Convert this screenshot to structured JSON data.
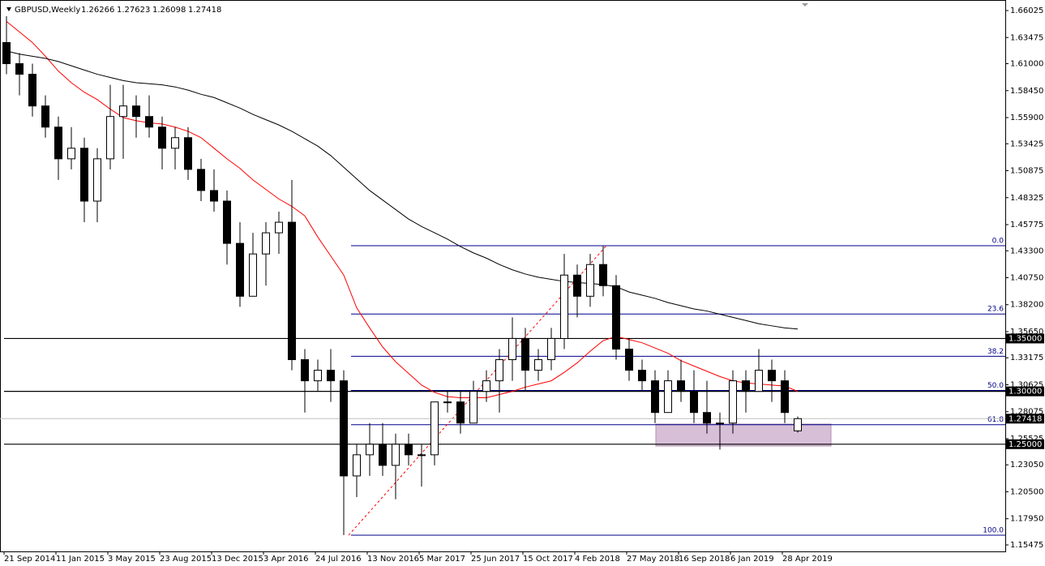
{
  "chart_data": {
    "type": "candlestick",
    "title": "GBPUSD,Weekly",
    "categories": [
      "21 Sep 2014",
      null,
      null,
      null,
      "11 Jan 2015",
      null,
      null,
      null,
      "3 May 2015",
      null,
      null,
      null,
      "23 Aug 2015",
      null,
      null,
      null,
      "13 Dec 2015",
      null,
      null,
      null,
      "3 Apr 2016",
      null,
      null,
      null,
      "24 Jul 2016",
      null,
      null,
      null,
      "13 Nov 2016",
      null,
      null,
      null,
      "5 Mar 2017",
      null,
      null,
      null,
      "25 Jun 2017",
      null,
      null,
      null,
      "15 Oct 2017",
      null,
      null,
      null,
      "4 Feb 2018",
      null,
      null,
      null,
      "27 May 2018",
      null,
      null,
      null,
      "16 Sep 2018",
      null,
      null,
      null,
      "6 Jan 2019",
      null,
      null,
      null,
      "28 Apr 2019",
      null
    ],
    "open": [
      1.63,
      1.61,
      1.6,
      1.57,
      1.55,
      1.52,
      1.53,
      1.48,
      1.52,
      1.56,
      1.57,
      1.56,
      1.55,
      1.53,
      1.54,
      1.51,
      1.49,
      1.48,
      1.44,
      1.39,
      1.43,
      1.45,
      1.46,
      1.33,
      1.31,
      1.32,
      1.31,
      1.22,
      1.24,
      1.25,
      1.23,
      1.25,
      1.24,
      1.24,
      1.29,
      1.29,
      1.27,
      1.3,
      1.31,
      1.33,
      1.35,
      1.32,
      1.33,
      1.35,
      1.41,
      1.39,
      1.42,
      1.4,
      1.34,
      1.32,
      1.31,
      1.28,
      1.31,
      1.3,
      1.28,
      1.27,
      1.27,
      1.31,
      1.3,
      1.32,
      1.31,
      1.26266
    ],
    "high": [
      1.655,
      1.62,
      1.61,
      1.58,
      1.56,
      1.55,
      1.54,
      1.53,
      1.59,
      1.59,
      1.58,
      1.58,
      1.56,
      1.55,
      1.55,
      1.52,
      1.51,
      1.49,
      1.46,
      1.45,
      1.46,
      1.47,
      1.5,
      1.34,
      1.33,
      1.34,
      1.32,
      1.25,
      1.27,
      1.27,
      1.26,
      1.26,
      1.25,
      1.29,
      1.3,
      1.3,
      1.31,
      1.32,
      1.34,
      1.37,
      1.36,
      1.34,
      1.36,
      1.43,
      1.42,
      1.43,
      1.4376,
      1.41,
      1.35,
      1.33,
      1.32,
      1.32,
      1.33,
      1.32,
      1.31,
      1.28,
      1.32,
      1.32,
      1.34,
      1.33,
      1.32,
      1.27623
    ],
    "low": [
      1.6,
      1.58,
      1.56,
      1.54,
      1.5,
      1.51,
      1.46,
      1.46,
      1.51,
      1.52,
      1.54,
      1.54,
      1.51,
      1.51,
      1.5,
      1.48,
      1.47,
      1.42,
      1.38,
      1.39,
      1.4,
      1.43,
      1.32,
      1.28,
      1.3,
      1.29,
      1.164,
      1.2,
      1.22,
      1.22,
      1.198,
      1.23,
      1.21,
      1.23,
      1.28,
      1.26,
      1.27,
      1.29,
      1.28,
      1.31,
      1.3,
      1.31,
      1.32,
      1.34,
      1.37,
      1.38,
      1.39,
      1.33,
      1.31,
      1.3,
      1.27,
      1.28,
      1.29,
      1.27,
      1.26,
      1.245,
      1.26,
      1.28,
      1.3,
      1.29,
      1.27,
      1.26098
    ],
    "close": [
      1.61,
      1.6,
      1.57,
      1.55,
      1.52,
      1.53,
      1.48,
      1.52,
      1.56,
      1.57,
      1.56,
      1.55,
      1.53,
      1.54,
      1.51,
      1.49,
      1.48,
      1.44,
      1.39,
      1.43,
      1.45,
      1.46,
      1.33,
      1.31,
      1.32,
      1.31,
      1.22,
      1.24,
      1.25,
      1.23,
      1.25,
      1.24,
      1.24,
      1.29,
      1.29,
      1.27,
      1.3,
      1.31,
      1.33,
      1.35,
      1.32,
      1.33,
      1.35,
      1.41,
      1.39,
      1.42,
      1.4,
      1.34,
      1.32,
      1.31,
      1.28,
      1.31,
      1.3,
      1.28,
      1.27,
      1.27,
      1.31,
      1.3,
      1.32,
      1.31,
      1.28,
      1.27418
    ],
    "up_color": "#ffffff",
    "down_color": "#000000",
    "outline_color": "#000000",
    "moving_averages": [
      {
        "color": "#ff0000",
        "values": [
          1.65,
          1.64,
          1.63,
          1.617,
          1.603,
          1.592,
          1.583,
          1.576,
          1.567,
          1.559,
          1.556,
          1.554,
          1.553,
          1.55,
          1.546,
          1.54,
          1.53,
          1.52,
          1.511,
          1.5,
          1.491,
          1.482,
          1.475,
          1.466,
          1.446,
          1.428,
          1.41,
          1.379,
          1.36,
          1.342,
          1.328,
          1.317,
          1.306,
          1.299,
          1.295,
          1.294,
          1.294,
          1.294,
          1.297,
          1.3,
          1.304,
          1.307,
          1.31,
          1.318,
          1.327,
          1.338,
          1.348,
          1.352,
          1.349,
          1.346,
          1.341,
          1.336,
          1.329,
          1.324,
          1.319,
          1.314,
          1.31,
          1.308,
          1.307,
          1.306,
          1.305,
          1.3
        ]
      },
      {
        "color": "#000000",
        "values": [
          1.622,
          1.619,
          1.617,
          1.615,
          1.612,
          1.608,
          1.604,
          1.6,
          1.597,
          1.594,
          1.592,
          1.591,
          1.59,
          1.588,
          1.585,
          1.581,
          1.578,
          1.573,
          1.568,
          1.562,
          1.557,
          1.552,
          1.546,
          1.539,
          1.532,
          1.523,
          1.512,
          1.501,
          1.49,
          1.481,
          1.472,
          1.463,
          1.456,
          1.45,
          1.444,
          1.437,
          1.431,
          1.426,
          1.42,
          1.415,
          1.411,
          1.408,
          1.406,
          1.404,
          1.403,
          1.402,
          1.401,
          1.399,
          1.394,
          1.391,
          1.388,
          1.384,
          1.381,
          1.378,
          1.376,
          1.373,
          1.37,
          1.367,
          1.364,
          1.362,
          1.36,
          1.359
        ]
      }
    ],
    "levels": [
      {
        "value": 1.35,
        "label": "1.35000"
      },
      {
        "value": 1.3,
        "label": "1.30000"
      },
      {
        "value": 1.25,
        "label": "1.25000"
      }
    ],
    "fibonacci": {
      "color": "#00008b",
      "levels": [
        {
          "label": "0.0",
          "value": 1.4378
        },
        {
          "label": "23.6",
          "value": 1.3732
        },
        {
          "label": "38.2",
          "value": 1.3332
        },
        {
          "label": "50.0",
          "value": 1.3009
        },
        {
          "label": "61.8",
          "value": 1.2685
        },
        {
          "label": "100.0",
          "value": 1.1639
        }
      ]
    },
    "ylim": [
      1.1486,
      1.6664
    ],
    "yticks": [
      1.66025,
      1.63475,
      {
        "value": 1.61,
        "label": "1.61000"
      },
      {
        "value": 1.5845,
        "label": "1.58450"
      },
      {
        "value": 1.559,
        "label": "1.55900"
      },
      1.53425,
      1.50875,
      1.48325,
      1.45775,
      {
        "value": 1.433,
        "label": "1.43300"
      },
      {
        "value": 1.4075,
        "label": "1.40750"
      },
      {
        "value": 1.382,
        "label": "1.38200"
      },
      {
        "value": 1.3565,
        "label": "1.35650"
      },
      1.33175,
      1.30625,
      1.28075,
      1.25525,
      {
        "value": 1.2305,
        "label": "1.23050"
      },
      {
        "value": 1.205,
        "label": "1.20500"
      },
      {
        "value": 1.1795,
        "label": "1.17950"
      },
      1.15475
    ]
  }
}
